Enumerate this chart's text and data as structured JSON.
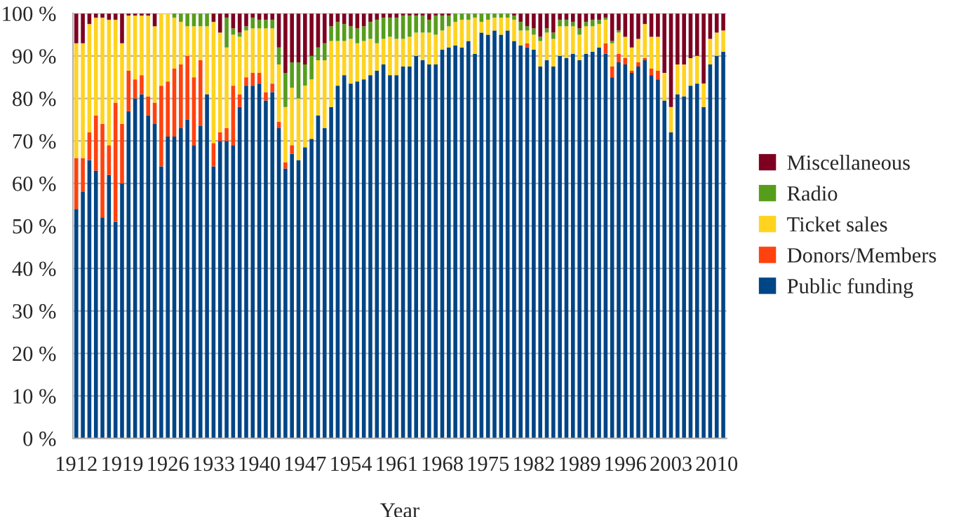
{
  "chart_data": {
    "type": "bar",
    "stacked": true,
    "xlabel": "Year",
    "categories": [
      "1912",
      null,
      null,
      null,
      null,
      null,
      null,
      "1919",
      null,
      null,
      null,
      null,
      null,
      null,
      "1926",
      null,
      null,
      null,
      null,
      null,
      null,
      "1933",
      null,
      null,
      null,
      null,
      null,
      null,
      "1940",
      null,
      null,
      null,
      null,
      null,
      null,
      "1947",
      null,
      null,
      null,
      null,
      null,
      null,
      "1954",
      null,
      null,
      null,
      null,
      null,
      null,
      "1961",
      null,
      null,
      null,
      null,
      null,
      null,
      "1968",
      null,
      null,
      null,
      null,
      null,
      null,
      "1975",
      null,
      null,
      null,
      null,
      null,
      null,
      "1982",
      null,
      null,
      null,
      null,
      null,
      null,
      "1989",
      null,
      null,
      null,
      null,
      null,
      null,
      "1996",
      null,
      null,
      null,
      null,
      null,
      null,
      "2003",
      null,
      null,
      null,
      null,
      null,
      null,
      "2010",
      null
    ],
    "series": [
      {
        "name": "Public funding",
        "color": "#004586",
        "values": [
          54,
          58,
          65.5,
          63,
          52,
          62,
          51,
          60,
          77,
          80,
          81,
          76,
          74,
          64,
          71,
          71,
          73,
          75,
          69,
          73.5,
          81,
          64,
          70,
          70,
          69,
          78,
          83,
          83,
          83.5,
          79.5,
          81.5,
          73,
          63.5,
          67,
          65.5,
          68.5,
          70.5,
          76,
          73,
          78,
          83,
          85.5,
          83.5,
          84,
          84.5,
          85.5,
          86.5,
          88,
          85.5,
          85.5,
          87.5,
          87.5,
          90,
          89,
          88,
          88,
          91.5,
          92,
          92.5,
          92,
          93.5,
          90.5,
          95.5,
          95,
          96,
          95,
          96,
          93.5,
          92.5,
          92,
          91.5,
          87.5,
          89,
          87.5,
          90,
          89.5,
          90.5,
          89,
          90.5,
          91,
          92,
          90.5,
          85,
          88.5,
          88,
          86,
          87.5,
          89,
          85.5,
          84.5,
          79.5,
          72,
          81,
          80.5,
          83,
          83.5,
          78,
          88,
          90,
          91
        ]
      },
      {
        "name": "Donors/Members",
        "color": "#ff420e",
        "values": [
          12,
          8,
          6.5,
          13,
          22,
          7,
          28,
          14,
          9.5,
          4.5,
          4.5,
          4.5,
          5,
          19,
          13,
          16,
          15,
          15,
          16,
          15.5,
          0,
          5.5,
          2,
          3,
          14,
          3,
          2,
          3,
          2.5,
          2,
          2,
          1.5,
          1.5,
          2,
          0,
          0,
          0,
          0,
          0,
          0,
          0,
          0,
          0,
          0,
          0,
          0,
          0,
          0,
          0,
          0,
          0,
          0,
          0,
          0,
          0,
          0,
          0,
          0,
          0,
          0,
          0,
          0,
          0,
          0,
          0,
          0,
          0,
          0,
          0,
          1,
          0,
          0,
          0,
          0,
          0,
          0,
          0,
          0,
          0,
          0,
          0,
          2.5,
          2.5,
          2,
          1.5,
          0.5,
          1,
          0.5,
          1.5,
          2,
          0,
          0,
          0,
          0,
          0,
          0,
          0,
          0,
          0,
          0
        ]
      },
      {
        "name": "Ticket sales",
        "color": "#ffd320",
        "values": [
          27,
          27,
          25.5,
          23,
          25,
          29.5,
          19.5,
          19,
          13,
          15,
          14,
          19,
          18,
          17,
          16,
          12,
          10,
          7,
          12,
          8,
          16,
          28.5,
          23.5,
          19,
          12,
          13.5,
          11,
          10.5,
          10.5,
          15,
          13,
          13.5,
          13,
          13.5,
          14.5,
          14.5,
          14,
          13,
          16,
          15.5,
          10.5,
          8,
          10.5,
          9,
          9,
          8.5,
          6.5,
          6,
          9,
          8.5,
          6.5,
          7,
          5.5,
          6.5,
          7.5,
          7,
          4.5,
          5,
          5.5,
          6.5,
          5,
          8.5,
          2.5,
          3.5,
          3,
          4,
          3,
          5,
          3.5,
          3,
          3.5,
          6,
          6.5,
          6.5,
          7,
          7.5,
          6.5,
          6,
          6.5,
          6,
          5.5,
          5.5,
          5.5,
          5,
          5,
          5.5,
          5.5,
          8,
          7.5,
          8,
          6.5,
          6,
          7,
          7.5,
          6.5,
          6.5,
          5.5,
          6,
          5.5,
          5
        ]
      },
      {
        "name": "Radio",
        "color": "#579d1c",
        "values": [
          0,
          0,
          0,
          0,
          0,
          0,
          0,
          0,
          0,
          0,
          0,
          0,
          0,
          0,
          0,
          1,
          2,
          3,
          3,
          3,
          3,
          0,
          0,
          7,
          1.5,
          1,
          1,
          2.5,
          2,
          2,
          2,
          4,
          8,
          6,
          8.5,
          5,
          5.5,
          3,
          4,
          3.5,
          4.5,
          4,
          3,
          3.5,
          3.5,
          4,
          5.5,
          5,
          4.5,
          5,
          5.5,
          5,
          4,
          4,
          3,
          4.5,
          3.5,
          2.5,
          2,
          1.5,
          1.5,
          1,
          2,
          1.5,
          1,
          1,
          1,
          1,
          2,
          1,
          1.5,
          1,
          1,
          1.5,
          1.5,
          1.5,
          1,
          1.5,
          1,
          1.5,
          1,
          0.5,
          0.5,
          0.5,
          0,
          0,
          0,
          0,
          0,
          0,
          0,
          0,
          0,
          0,
          0,
          0,
          0,
          0,
          0,
          0
        ]
      },
      {
        "name": "Miscellaneous",
        "color": "#7e0021",
        "values": [
          7,
          7,
          2.5,
          1,
          1,
          1.5,
          1.5,
          7,
          0.5,
          0.5,
          0.5,
          0.5,
          3,
          0,
          0,
          0,
          0,
          0,
          0,
          0,
          0,
          2,
          4.5,
          1,
          3.5,
          4.5,
          3,
          1,
          1.5,
          1.5,
          1.5,
          8,
          14,
          11.5,
          11.5,
          12,
          10,
          8,
          7,
          3,
          2,
          2.5,
          3,
          3.5,
          3,
          2,
          1.5,
          1,
          1,
          1,
          0.5,
          0.5,
          0.5,
          0.5,
          1.5,
          0.5,
          0.5,
          0.5,
          0,
          0,
          0,
          0,
          0,
          0,
          0,
          0,
          0,
          0.5,
          2,
          3,
          3.5,
          5.5,
          3.5,
          4.5,
          1.5,
          1.5,
          2,
          3.5,
          2,
          1.5,
          1.5,
          1,
          6.5,
          4,
          5.5,
          8,
          6,
          2.5,
          5.5,
          5.5,
          14,
          22,
          12,
          12,
          10.5,
          10,
          16.5,
          6,
          4.5,
          4
        ]
      }
    ],
    "ylim": [
      0,
      100
    ],
    "yticks": [
      {
        "value": 0,
        "label": "0 %"
      },
      {
        "value": 10,
        "label": "10 %"
      },
      {
        "value": 20,
        "label": "20 %"
      },
      {
        "value": 30,
        "label": "30 %"
      },
      {
        "value": 40,
        "label": "40 %"
      },
      {
        "value": 50,
        "label": "50 %"
      },
      {
        "value": 60,
        "label": "60 %"
      },
      {
        "value": 70,
        "label": "70 %"
      },
      {
        "value": 80,
        "label": "80 %"
      },
      {
        "value": 90,
        "label": "90 %"
      },
      {
        "value": 100,
        "label": "100 %"
      }
    ],
    "grid": "y",
    "legend": "right"
  }
}
